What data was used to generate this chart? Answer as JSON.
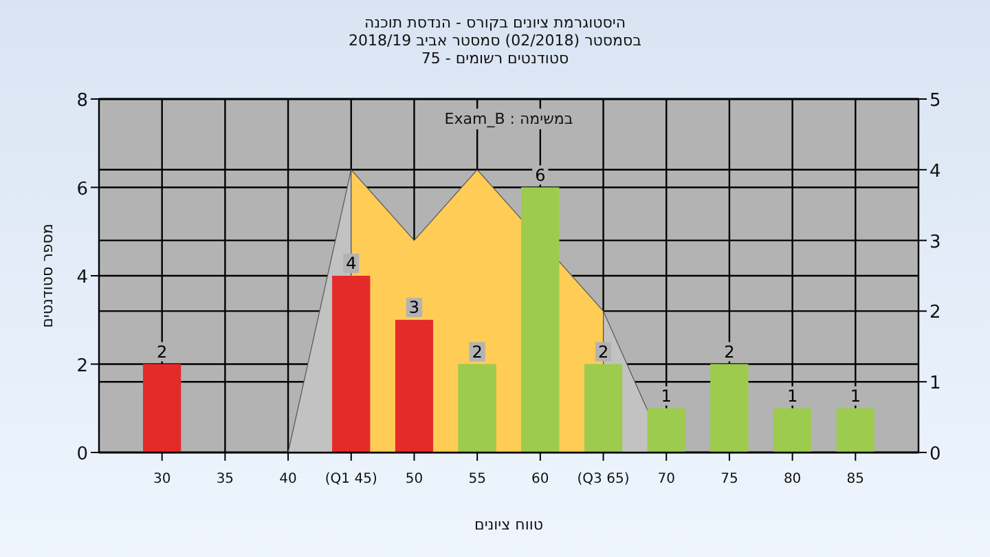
{
  "chart_data": {
    "type": "bar",
    "title": "היסטוגרמת ציונים בקורס - הנדסת תוכנה",
    "subtitle": "בסמסטר  (02/2018)  סמסטר אביב 2018/19\nסטודנטים רשומים - 75",
    "xlabel": "טווח ציונים",
    "ylabel": "מספר סטודנטים",
    "annotations": [
      "במשימה : Exam_B"
    ],
    "xlim": [
      25,
      90
    ],
    "xticks": [
      30,
      35,
      40,
      {
        "value": 45,
        "label": "(Q1 45)"
      },
      50,
      55,
      60,
      {
        "value": 65,
        "label": "(Q3 65)"
      },
      70,
      75,
      80,
      85
    ],
    "ylim": [
      0,
      8
    ],
    "yticks": [
      0,
      2,
      4,
      6,
      8
    ],
    "y2lim": [
      0,
      5
    ],
    "y2ticks": [
      0,
      1,
      2,
      3,
      4,
      5
    ],
    "grid": true,
    "series": [
      {
        "type": "area",
        "axis": "y2",
        "color": "#c2c2c2",
        "x": [
          40,
          45
        ],
        "values": [
          0,
          4
        ]
      },
      {
        "type": "area",
        "axis": "y2",
        "color": "#c2c2c2",
        "x": [
          65,
          70
        ],
        "values": [
          2,
          0
        ]
      },
      {
        "type": "area",
        "axis": "y2",
        "color": "#ffcc55",
        "x": [
          45,
          50,
          55,
          65
        ],
        "values": [
          4,
          3,
          4,
          2
        ]
      },
      {
        "x": [
          30,
          35,
          40,
          45,
          50,
          55,
          60,
          65,
          70,
          75,
          80,
          85
        ],
        "values": [
          2,
          0,
          0,
          4,
          3,
          2,
          6,
          2,
          1,
          2,
          1,
          1
        ],
        "colors": [
          "#e52a2a",
          "#e52a2a",
          "#e52a2a",
          "#e52a2a",
          "#e52a2a",
          "#9ccb4e",
          "#9ccb4e",
          "#9ccb4e",
          "#9ccb4e",
          "#9ccb4e",
          "#9ccb4e",
          "#9ccb4e"
        ],
        "value_labels": [
          "2",
          null,
          null,
          "4",
          "3",
          "2",
          "6",
          "2",
          "1",
          "2",
          "1",
          "1"
        ]
      }
    ]
  }
}
